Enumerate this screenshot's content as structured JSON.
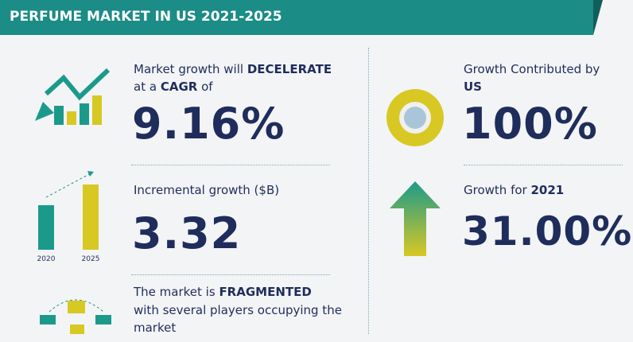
{
  "header": {
    "title": "PERFUME MARKET IN US 2021-2025"
  },
  "cagr": {
    "line1": "Market growth will",
    "line1_emphasis": "DECELERATE",
    "line2": "at a",
    "line2_emphasis": "CAGR",
    "line2_tail": "of",
    "value": "9.16%"
  },
  "incremental": {
    "label": "Incremental growth ($B)",
    "value": "3.32",
    "icon_labels": [
      "2020",
      "2025"
    ]
  },
  "structure": {
    "line1": "The market is",
    "line1_emphasis": "FRAGMENTED",
    "line2": "with several players occupying the",
    "line3": "market"
  },
  "contribution": {
    "line1": "Growth Contributed by",
    "line2_emphasis": "US",
    "value": "100%"
  },
  "yoy": {
    "line1": "Growth for",
    "line1_emphasis": "2021",
    "value": "31.00%"
  }
}
